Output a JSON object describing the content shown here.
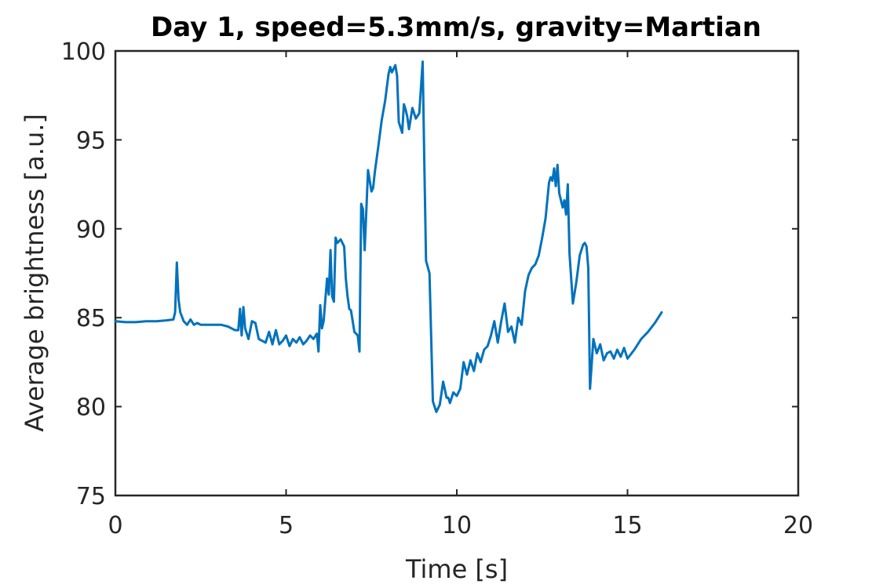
{
  "chart_data": {
    "type": "line",
    "title": "Day 1, speed=5.3mm/s, gravity=Martian",
    "xlabel": "Time [s]",
    "ylabel": "Average brightness [a.u.]",
    "xlim": [
      0,
      20
    ],
    "ylim": [
      75,
      100
    ],
    "xticks": [
      0,
      5,
      10,
      15,
      20
    ],
    "yticks": [
      75,
      80,
      85,
      90,
      95,
      100
    ],
    "xtick_labels": [
      "0",
      "5",
      "10",
      "15",
      "20"
    ],
    "ytick_labels": [
      "75",
      "80",
      "85",
      "90",
      "95",
      "100"
    ],
    "grid": false,
    "series": [
      {
        "color": "#0072BD",
        "x": [
          0.0,
          0.3,
          0.6,
          0.9,
          1.2,
          1.5,
          1.7,
          1.75,
          1.8,
          1.85,
          1.9,
          2.0,
          2.1,
          2.2,
          2.3,
          2.4,
          2.5,
          2.7,
          2.9,
          3.1,
          3.3,
          3.5,
          3.6,
          3.65,
          3.7,
          3.75,
          3.8,
          3.9,
          4.0,
          4.1,
          4.2,
          4.3,
          4.4,
          4.5,
          4.6,
          4.7,
          4.8,
          4.9,
          5.0,
          5.1,
          5.2,
          5.3,
          5.4,
          5.5,
          5.6,
          5.7,
          5.8,
          5.9,
          5.95,
          6.0,
          6.05,
          6.1,
          6.2,
          6.25,
          6.3,
          6.35,
          6.4,
          6.45,
          6.5,
          6.6,
          6.7,
          6.75,
          6.8,
          6.85,
          6.9,
          7.0,
          7.1,
          7.15,
          7.2,
          7.25,
          7.3,
          7.4,
          7.5,
          7.55,
          7.6,
          7.7,
          7.8,
          7.9,
          8.0,
          8.05,
          8.1,
          8.2,
          8.25,
          8.3,
          8.4,
          8.45,
          8.5,
          8.55,
          8.6,
          8.7,
          8.8,
          8.9,
          9.0,
          9.05,
          9.1,
          9.2,
          9.3,
          9.4,
          9.5,
          9.6,
          9.7,
          9.75,
          9.8,
          9.9,
          10.0,
          10.1,
          10.2,
          10.3,
          10.4,
          10.5,
          10.6,
          10.7,
          10.8,
          10.9,
          11.0,
          11.1,
          11.2,
          11.3,
          11.4,
          11.5,
          11.6,
          11.7,
          11.8,
          11.9,
          12.0,
          12.1,
          12.2,
          12.3,
          12.4,
          12.5,
          12.6,
          12.7,
          12.75,
          12.8,
          12.85,
          12.9,
          12.95,
          13.0,
          13.1,
          13.15,
          13.2,
          13.25,
          13.3,
          13.4,
          13.5,
          13.6,
          13.7,
          13.75,
          13.8,
          13.85,
          13.9,
          14.0,
          14.1,
          14.2,
          14.3,
          14.4,
          14.5,
          14.6,
          14.7,
          14.8,
          14.9,
          15.0,
          15.2,
          15.4,
          15.6,
          15.8,
          16.0
        ],
        "y": [
          84.8,
          84.75,
          84.75,
          84.8,
          84.8,
          84.85,
          84.9,
          85.3,
          88.1,
          86.0,
          85.3,
          84.8,
          84.6,
          84.9,
          84.6,
          84.7,
          84.6,
          84.6,
          84.6,
          84.6,
          84.5,
          84.3,
          84.3,
          85.5,
          84.0,
          85.6,
          84.4,
          83.8,
          84.8,
          84.7,
          83.8,
          83.7,
          83.6,
          84.2,
          83.5,
          84.3,
          83.5,
          83.7,
          84.0,
          83.4,
          83.8,
          83.6,
          83.9,
          83.5,
          83.7,
          84.0,
          83.8,
          84.1,
          83.1,
          85.7,
          84.4,
          84.8,
          87.2,
          86.3,
          88.8,
          86.2,
          85.9,
          89.5,
          89.2,
          89.4,
          89.0,
          87.2,
          86.2,
          85.5,
          85.4,
          84.2,
          84.0,
          83.1,
          91.4,
          91.1,
          88.8,
          93.3,
          92.1,
          92.3,
          93.2,
          94.6,
          96.1,
          97.2,
          98.7,
          99.1,
          98.8,
          99.2,
          98.6,
          96.0,
          95.4,
          97.0,
          96.7,
          96.3,
          95.6,
          96.8,
          96.2,
          96.5,
          99.4,
          93.5,
          88.2,
          87.5,
          80.3,
          79.7,
          80.1,
          81.4,
          80.5,
          80.5,
          80.2,
          80.8,
          80.6,
          81.0,
          82.5,
          81.8,
          82.6,
          82.0,
          83.0,
          82.5,
          83.2,
          83.4,
          84.0,
          84.8,
          83.6,
          84.8,
          85.8,
          84.2,
          84.5,
          83.6,
          85.0,
          84.6,
          86.5,
          87.4,
          87.8,
          88.0,
          88.5,
          89.5,
          90.6,
          92.6,
          92.9,
          92.7,
          93.4,
          92.4,
          93.6,
          92.0,
          91.2,
          91.6,
          90.8,
          92.5,
          88.6,
          85.8,
          87.0,
          88.5,
          89.1,
          89.2,
          89.0,
          87.8,
          81.0,
          83.8,
          83.0,
          83.5,
          82.6,
          83.0,
          83.1,
          82.7,
          83.2,
          82.8,
          83.3,
          82.7,
          83.2,
          83.8,
          84.2,
          84.7,
          85.3
        ]
      }
    ]
  }
}
